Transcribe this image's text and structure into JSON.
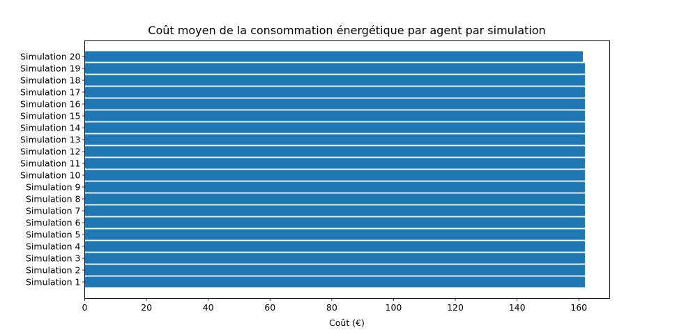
{
  "chart_data": {
    "type": "bar",
    "orientation": "horizontal",
    "title": "Coût moyen de la consommation énergétique par agent par simulation",
    "xlabel": "Coût (€)",
    "ylabel": "",
    "xlim": [
      0,
      170
    ],
    "xticks": [
      0,
      20,
      40,
      60,
      80,
      100,
      120,
      140,
      160
    ],
    "categories": [
      "Simulation 1",
      "Simulation 2",
      "Simulation 3",
      "Simulation 4",
      "Simulation 5",
      "Simulation 6",
      "Simulation 7",
      "Simulation 8",
      "Simulation 9",
      "Simulation 10",
      "Simulation 11",
      "Simulation 12",
      "Simulation 13",
      "Simulation 14",
      "Simulation 15",
      "Simulation 16",
      "Simulation 17",
      "Simulation 18",
      "Simulation 19",
      "Simulation 20"
    ],
    "values": [
      162,
      162,
      162,
      162,
      162,
      162,
      162,
      162,
      162,
      162,
      162,
      162,
      162,
      162,
      162,
      162,
      162,
      162,
      162,
      161.3
    ],
    "bar_color": "#1f77b4",
    "grid": false,
    "legend": "none"
  }
}
